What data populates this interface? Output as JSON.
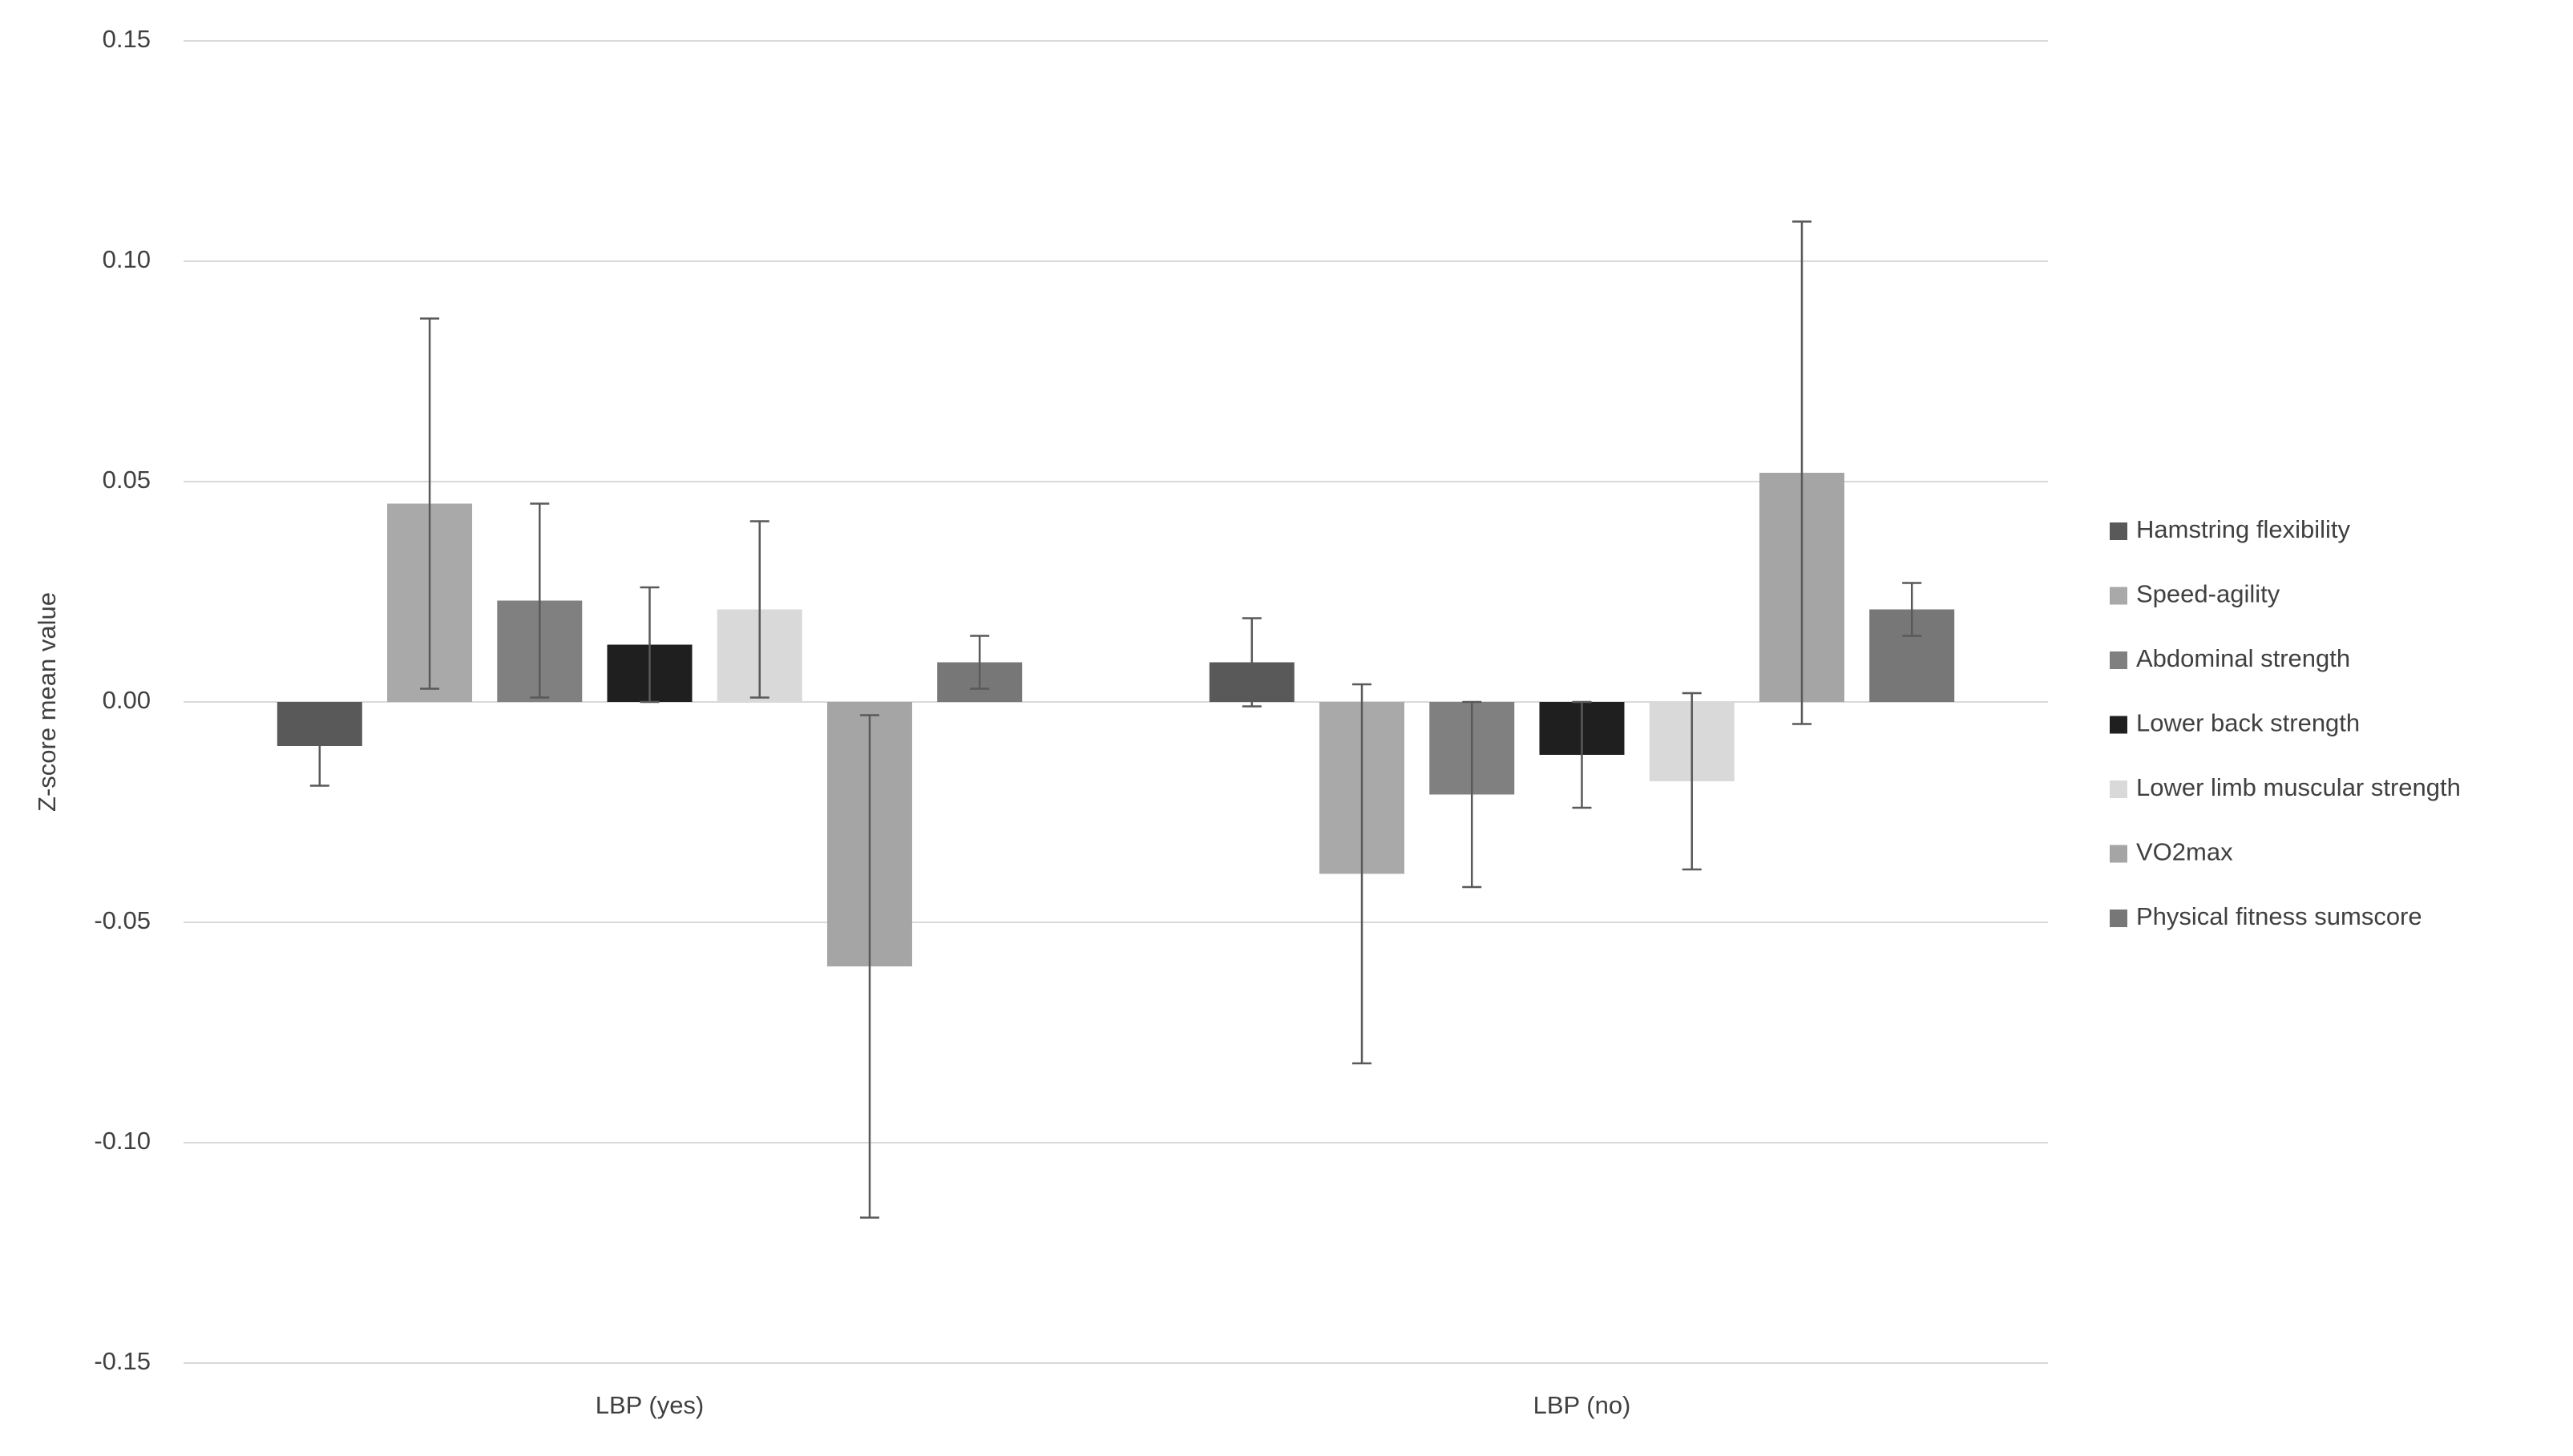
{
  "chart_data": {
    "type": "bar",
    "ylabel": "Z-score mean value",
    "categories": [
      "LBP (yes)",
      "LBP (no)"
    ],
    "series": [
      {
        "name": "Hamstring flexibility",
        "color": "#595959",
        "values": [
          -0.01,
          0.009
        ],
        "errors": [
          0.009,
          0.01
        ]
      },
      {
        "name": "Speed-agility",
        "color": "#a9a9a9",
        "values": [
          0.045,
          -0.039
        ],
        "errors": [
          0.042,
          0.043
        ]
      },
      {
        "name": "Abdominal strength",
        "color": "#808080",
        "values": [
          0.023,
          -0.021
        ],
        "errors": [
          0.022,
          0.021
        ]
      },
      {
        "name": "Lower back strength",
        "color": "#1f1f1f",
        "values": [
          0.013,
          -0.012
        ],
        "errors": [
          0.013,
          0.012
        ]
      },
      {
        "name": "Lower limb muscular strength",
        "color": "#d9d9d9",
        "values": [
          0.021,
          -0.018
        ],
        "errors": [
          0.02,
          0.02
        ]
      },
      {
        "name": "VO2max",
        "color": "#a5a5a5",
        "values": [
          -0.06,
          0.052
        ],
        "errors": [
          0.057,
          0.057
        ]
      },
      {
        "name": "Physical fitness sumscore",
        "color": "#777777",
        "values": [
          0.009,
          0.021
        ],
        "errors": [
          0.006,
          0.006
        ]
      }
    ],
    "ylim": [
      -0.15,
      0.15
    ],
    "yticks": [
      -0.15,
      {
        "value": -0.1,
        "label": "-0.10"
      },
      -0.05,
      {
        "value": 0,
        "label": "0.00"
      },
      0.05,
      {
        "value": 0.1,
        "label": "0.10"
      },
      0.15
    ],
    "grid": true,
    "legend": "right"
  }
}
